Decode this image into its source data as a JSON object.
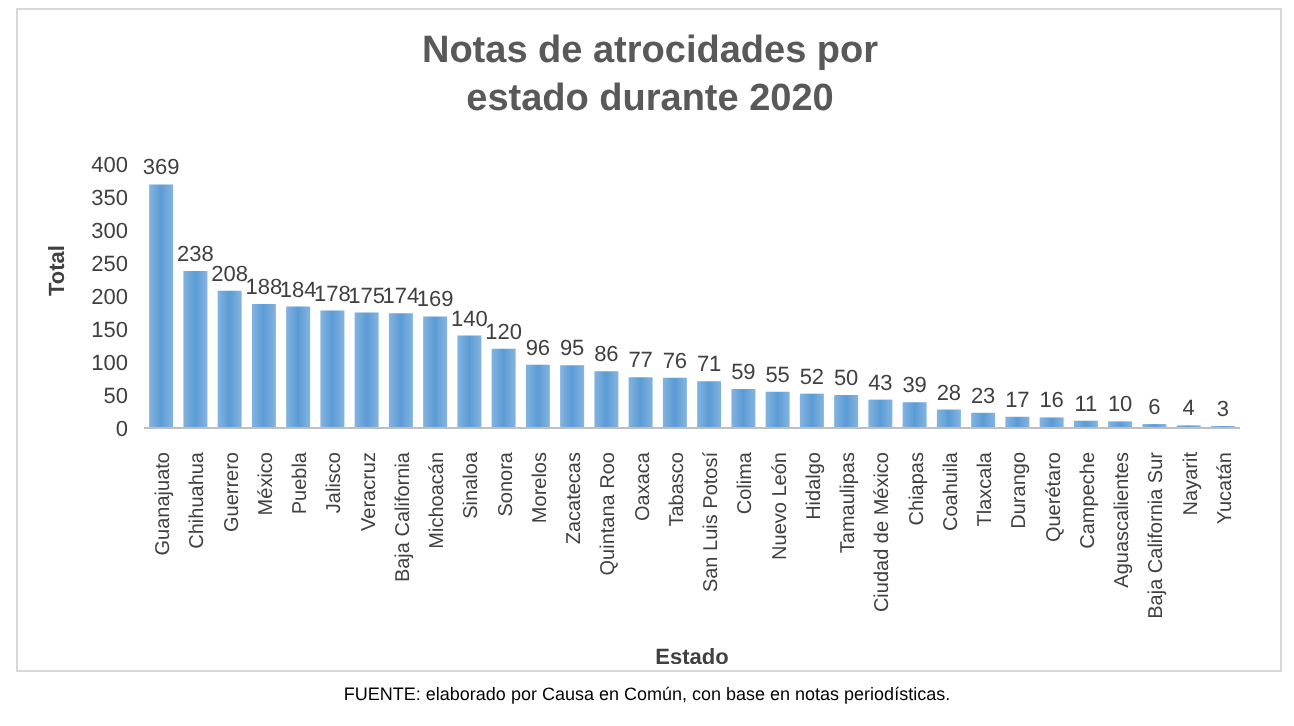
{
  "chart_data": {
    "type": "bar",
    "title": "Notas de atrocidades por estado durante 2020",
    "xlabel": "Estado",
    "ylabel": "Total",
    "categories": [
      "Guanajuato",
      "Chihuahua",
      "Guerrero",
      "México",
      "Puebla",
      "Jalisco",
      "Veracruz",
      "Baja California",
      "Michoacán",
      "Sinaloa",
      "Sonora",
      "Morelos",
      "Zacatecas",
      "Quintana Roo",
      "Oaxaca",
      "Tabasco",
      "San Luis Potosí",
      "Colima",
      "Nuevo León",
      "Hidalgo",
      "Tamaulipas",
      "Ciudad de México",
      "Chiapas",
      "Coahuila",
      "Tlaxcala",
      "Durango",
      "Querétaro",
      "Campeche",
      "Aguascalientes",
      "Baja California Sur",
      "Nayarit",
      "Yucatán"
    ],
    "values": [
      369,
      238,
      208,
      188,
      184,
      178,
      175,
      174,
      169,
      140,
      120,
      96,
      95,
      86,
      77,
      76,
      71,
      59,
      55,
      52,
      50,
      43,
      39,
      28,
      23,
      17,
      16,
      11,
      10,
      6,
      4,
      3
    ],
    "color": "#5b9bd5",
    "ylim": [
      0,
      400
    ],
    "yticks": [
      0,
      50,
      100,
      150,
      200,
      250,
      300,
      350,
      400
    ],
    "grid": false,
    "data_labels": true,
    "annotations": [
      "FUENTE: elaborado por Causa en Común, con base en notas periodísticas."
    ]
  }
}
